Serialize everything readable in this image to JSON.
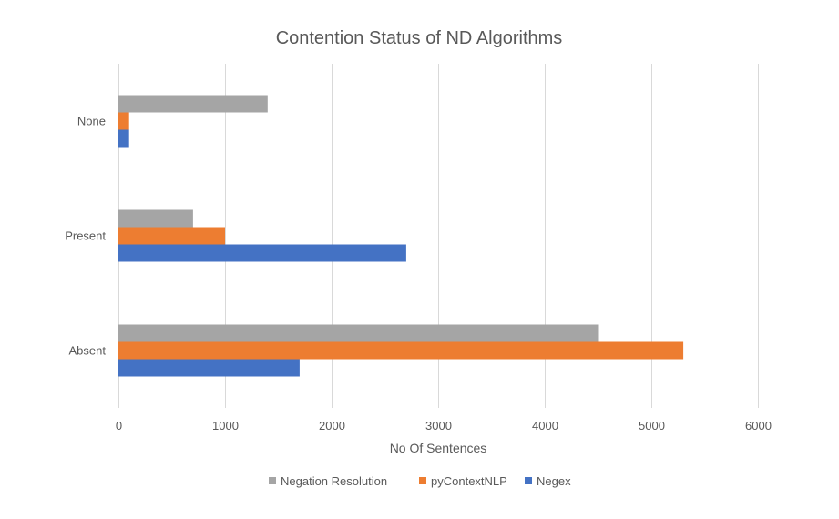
{
  "chart_data": {
    "type": "bar",
    "orientation": "horizontal",
    "title": "Contention Status of ND Algorithms",
    "xlabel": "No Of Sentences",
    "ylabel": "",
    "categories": [
      "Absent",
      "Present",
      "None"
    ],
    "xlim": [
      0,
      6000
    ],
    "xticks": [
      0,
      1000,
      2000,
      3000,
      4000,
      5000,
      6000
    ],
    "grid": "vertical",
    "legend": "bottom",
    "series": [
      {
        "name": "Negex",
        "color": "#4472c4",
        "values": [
          1700,
          2700,
          100
        ]
      },
      {
        "name": "pyContextNLP",
        "color": "#ed7d31",
        "values": [
          5300,
          1000,
          100
        ]
      },
      {
        "name": "Negation Resolution",
        "color": "#a5a5a5",
        "values": [
          4500,
          700,
          1400
        ]
      }
    ],
    "legend_order": [
      "Negation Resolution",
      "pyContextNLP",
      "Negex"
    ]
  }
}
